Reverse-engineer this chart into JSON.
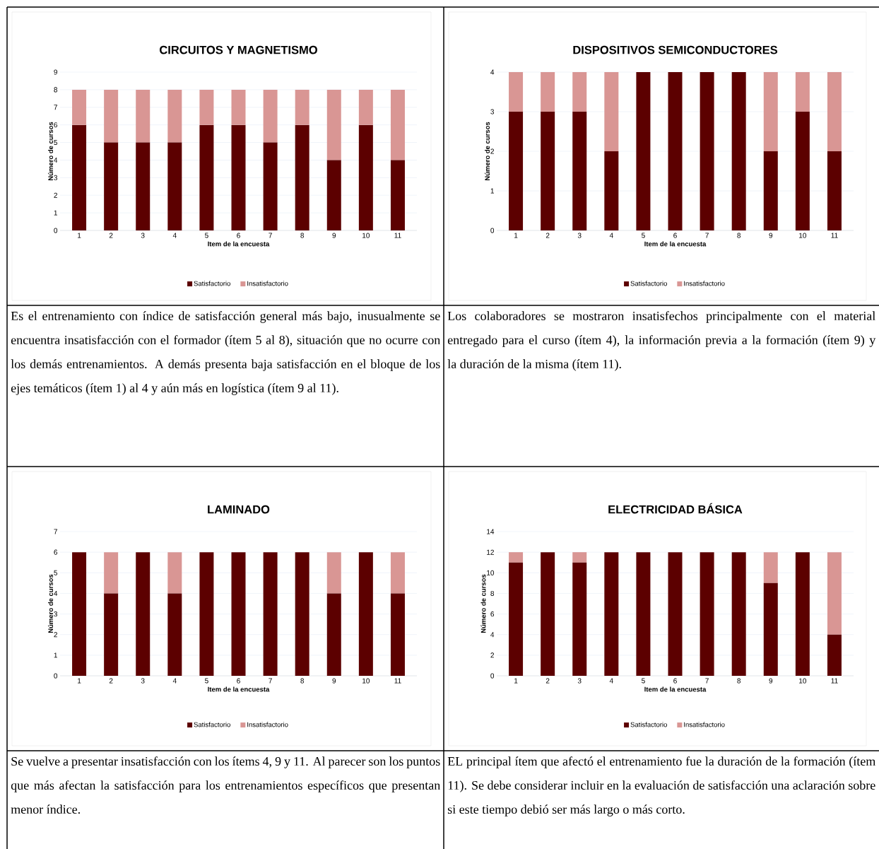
{
  "chart_data": [
    {
      "type": "bar",
      "title": "CIRCUITOS Y MAGNETISMO",
      "xlabel": "Item de la encuesta",
      "ylabel": "Número de cursos",
      "categories": [
        "1",
        "2",
        "3",
        "4",
        "5",
        "6",
        "7",
        "8",
        "9",
        "10",
        "11"
      ],
      "stacked": true,
      "ylim": [
        0,
        9
      ],
      "yticks": [
        0,
        1,
        2,
        3,
        4,
        5,
        6,
        7,
        8,
        9
      ],
      "grid": "y",
      "legend": "bottom",
      "series": [
        {
          "name": "Satisfactorio",
          "color": "#5c0000",
          "values": [
            6,
            5,
            5,
            5,
            6,
            6,
            5,
            6,
            4,
            6,
            4
          ]
        },
        {
          "name": "Insatisfactorio",
          "color": "#d99694",
          "values": [
            2,
            3,
            3,
            3,
            2,
            2,
            3,
            2,
            4,
            2,
            4
          ]
        }
      ]
    },
    {
      "type": "bar",
      "title": "DISPOSITIVOS SEMICONDUCTORES",
      "xlabel": "Item de la encuesta",
      "ylabel": "Número de cursos",
      "categories": [
        "1",
        "2",
        "3",
        "4",
        "5",
        "6",
        "7",
        "8",
        "9",
        "10",
        "11"
      ],
      "stacked": true,
      "ylim": [
        0,
        4
      ],
      "yticks": [
        0,
        1,
        2,
        3,
        4
      ],
      "grid": "y",
      "legend": "bottom",
      "series": [
        {
          "name": "Satisfactorio",
          "color": "#5c0000",
          "values": [
            3,
            3,
            3,
            2,
            4,
            4,
            4,
            4,
            2,
            3,
            2
          ]
        },
        {
          "name": "Insatisfactorio",
          "color": "#d99694",
          "values": [
            1,
            1,
            1,
            2,
            0,
            0,
            0,
            0,
            2,
            1,
            2
          ]
        }
      ]
    },
    {
      "type": "other",
      "annotations": [
        "Es el entrenamiento con índice de satisfacción general más bajo, inusualmente se encuentra insatisfacción con el formador (ítem 5 al 8), situación que no ocurre con los demás entrenamientos. A demás presenta baja satisfacción en el bloque de los ejes temáticos (ítem 1) al 4 y aún más en logística (ítem 9 al 11)."
      ]
    },
    {
      "type": "other",
      "annotations": [
        "Los colaboradores se mostraron insatisfechos principalmente con el material entregado para el curso (ítem 4), la información previa a la formación (ítem 9) y la duración de la misma (ítem 11)."
      ]
    },
    {
      "type": "bar",
      "title": "LAMINADO",
      "xlabel": "Item de la encuesta",
      "ylabel": "Número de cursos",
      "categories": [
        "1",
        "2",
        "3",
        "4",
        "5",
        "6",
        "7",
        "8",
        "9",
        "10",
        "11"
      ],
      "stacked": true,
      "ylim": [
        0,
        7
      ],
      "yticks": [
        0,
        1,
        2,
        3,
        4,
        5,
        6,
        7
      ],
      "grid": "y",
      "legend": "bottom",
      "series": [
        {
          "name": "Satisfactorio",
          "color": "#5c0000",
          "values": [
            6,
            4,
            6,
            4,
            6,
            6,
            6,
            6,
            4,
            6,
            4
          ]
        },
        {
          "name": "Insatisfactorio",
          "color": "#d99694",
          "values": [
            0,
            2,
            0,
            2,
            0,
            0,
            0,
            0,
            2,
            0,
            2
          ]
        }
      ]
    },
    {
      "type": "bar",
      "title": "ELECTRICIDAD BÁSICA",
      "xlabel": "Item de la encuesta",
      "ylabel": "Número de cursos",
      "categories": [
        "1",
        "2",
        "3",
        "4",
        "5",
        "6",
        "7",
        "8",
        "9",
        "10",
        "11"
      ],
      "stacked": true,
      "ylim": [
        0,
        14
      ],
      "yticks": [
        0,
        2,
        4,
        6,
        8,
        10,
        12,
        14
      ],
      "grid": "y",
      "legend": "bottom",
      "series": [
        {
          "name": "Satisfactorio",
          "color": "#5c0000",
          "values": [
            11,
            12,
            11,
            12,
            12,
            12,
            12,
            12,
            9,
            12,
            4
          ]
        },
        {
          "name": "Insatisfactorio",
          "color": "#d99694",
          "values": [
            1,
            0,
            1,
            0,
            0,
            0,
            0,
            0,
            3,
            0,
            8
          ]
        }
      ]
    },
    {
      "type": "other",
      "annotations": [
        "Se vuelve a presentar insatisfacción con los ítems 4, 9 y 11. Al parecer son los puntos que más afectan la satisfacción para los entrenamientos específicos que presentan menor índice."
      ]
    },
    {
      "type": "other",
      "annotations": [
        "EL principal ítem que afectó el entrenamiento fue la duración de la formación (ítem 11). Se debe considerar incluir en la evaluación de satisfacción una aclaración sobre si este tiempo debió ser más largo o más corto."
      ]
    }
  ]
}
